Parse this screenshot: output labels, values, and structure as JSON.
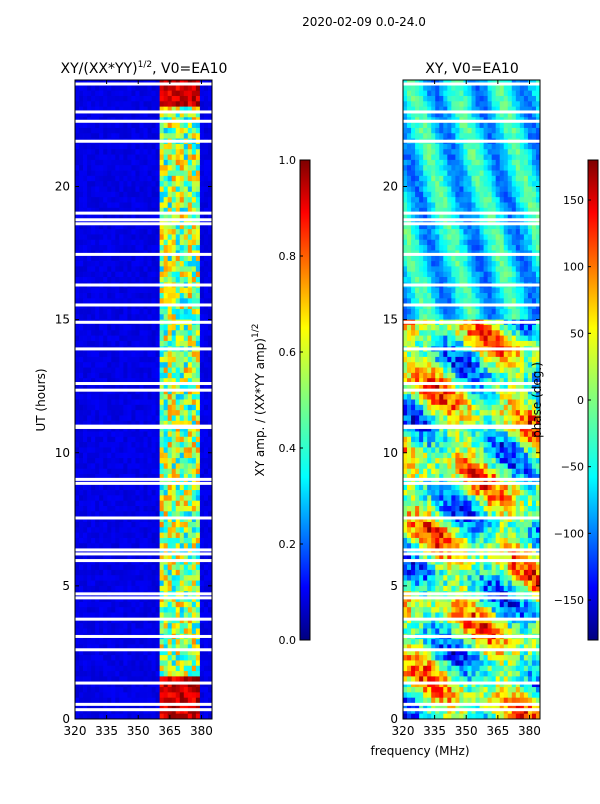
{
  "figure": {
    "suptitle": "2020-02-09 0.0-24.0",
    "shared_xlabel": "frequency (MHz)"
  },
  "chart_data": [
    {
      "type": "heatmap",
      "title": "XY/(XX*YY)",
      "title_exponent": "1/2",
      "title_suffix": ", V0=EA10",
      "xlabel": "frequency (MHz)",
      "ylabel": "UT (hours)",
      "xlim": [
        320,
        385
      ],
      "ylim": [
        0,
        24
      ],
      "xticks": [
        320,
        335,
        350,
        365,
        380
      ],
      "yticks": [
        0,
        5,
        10,
        15,
        20
      ],
      "colormap": "jet",
      "colorbar": {
        "label": "XY amp. / (XX*YY amp)",
        "label_exponent": "1/2",
        "range": [
          0.0,
          1.0
        ],
        "ticks": [
          0.0,
          0.2,
          0.4,
          0.6,
          0.8,
          1.0
        ],
        "tick_labels": [
          "0.0",
          "0.2",
          "0.4",
          "0.6",
          "0.8",
          "1.0"
        ]
      },
      "signal_band_mhz": [
        361,
        380
      ],
      "gap_hours": [
        23.85,
        22.8,
        22.45,
        21.7,
        19.0,
        18.75,
        18.6,
        17.45,
        16.3,
        15.55,
        14.9,
        13.9,
        12.6,
        12.35,
        11.0,
        10.95,
        9.0,
        8.85,
        7.55,
        6.35,
        6.2,
        5.95,
        4.7,
        4.55,
        3.75,
        3.1,
        2.6,
        1.35,
        0.55,
        0.35
      ]
    },
    {
      "type": "heatmap",
      "title": "XY, V0=EA10",
      "xlim": [
        320,
        385
      ],
      "ylim": [
        0,
        24
      ],
      "xticks": [
        320,
        335,
        350,
        365,
        380
      ],
      "yticks": [
        0,
        5,
        10,
        15,
        20
      ],
      "colormap": "jet",
      "colorbar": {
        "label": "phase (deg.)",
        "range": [
          -180,
          180
        ],
        "ticks": [
          150,
          100,
          50,
          0,
          -50,
          -100,
          -150
        ],
        "tick_labels": [
          "150",
          "100",
          "50",
          "0",
          "−50",
          "−100",
          "−150"
        ]
      },
      "gap_hours": [
        23.85,
        22.8,
        22.45,
        21.7,
        19.0,
        18.75,
        18.6,
        17.45,
        16.3,
        15.55,
        14.9,
        13.9,
        12.6,
        12.35,
        11.0,
        10.95,
        9.0,
        8.85,
        7.55,
        6.35,
        6.2,
        5.95,
        4.7,
        4.55,
        3.75,
        3.1,
        2.6,
        1.35,
        0.55,
        0.35
      ]
    }
  ],
  "colors": {
    "jet": [
      "#00007f",
      "#0000ff",
      "#007fff",
      "#00ffff",
      "#7fff7f",
      "#ffff00",
      "#ff7f00",
      "#ff0000",
      "#7f0000"
    ]
  }
}
